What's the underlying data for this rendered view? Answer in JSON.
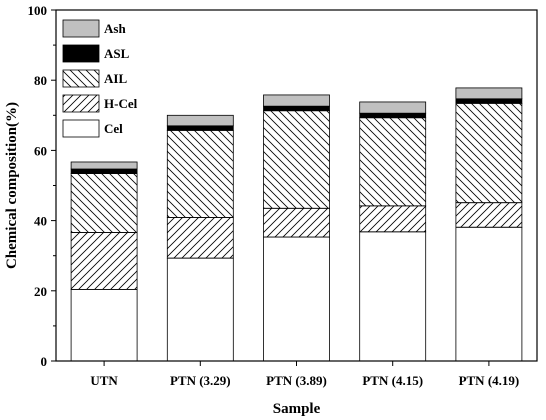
{
  "chart_data": {
    "type": "bar",
    "stacked": true,
    "xlabel": "Sample",
    "ylabel": "Chemical composition(%)",
    "ylim": [
      0,
      100
    ],
    "yticks": [
      0,
      20,
      40,
      60,
      80,
      100
    ],
    "categories": [
      "UTN",
      "PTN (3.29)",
      "PTN (3.89)",
      "PTN (4.15)",
      "PTN (4.19)"
    ],
    "legend_position": "top-left",
    "series": [
      {
        "name": "Cel",
        "fill": "white",
        "values": [
          20.4,
          29.3,
          35.3,
          36.8,
          38.1
        ]
      },
      {
        "name": "H-Cel",
        "fill": "hatch-dense",
        "values": [
          16.2,
          11.6,
          8.2,
          7.4,
          7.0
        ]
      },
      {
        "name": "AIL",
        "fill": "hatch",
        "values": [
          16.8,
          24.8,
          27.8,
          25.1,
          28.3
        ]
      },
      {
        "name": "ASL",
        "fill": "black",
        "values": [
          1.3,
          1.3,
          1.3,
          1.3,
          1.3
        ]
      },
      {
        "name": "Ash",
        "fill": "gray",
        "values": [
          2.0,
          3.0,
          3.2,
          3.2,
          3.1
        ]
      }
    ],
    "legend_order": [
      "Ash",
      "ASL",
      "AIL",
      "H-Cel",
      "Cel"
    ]
  }
}
